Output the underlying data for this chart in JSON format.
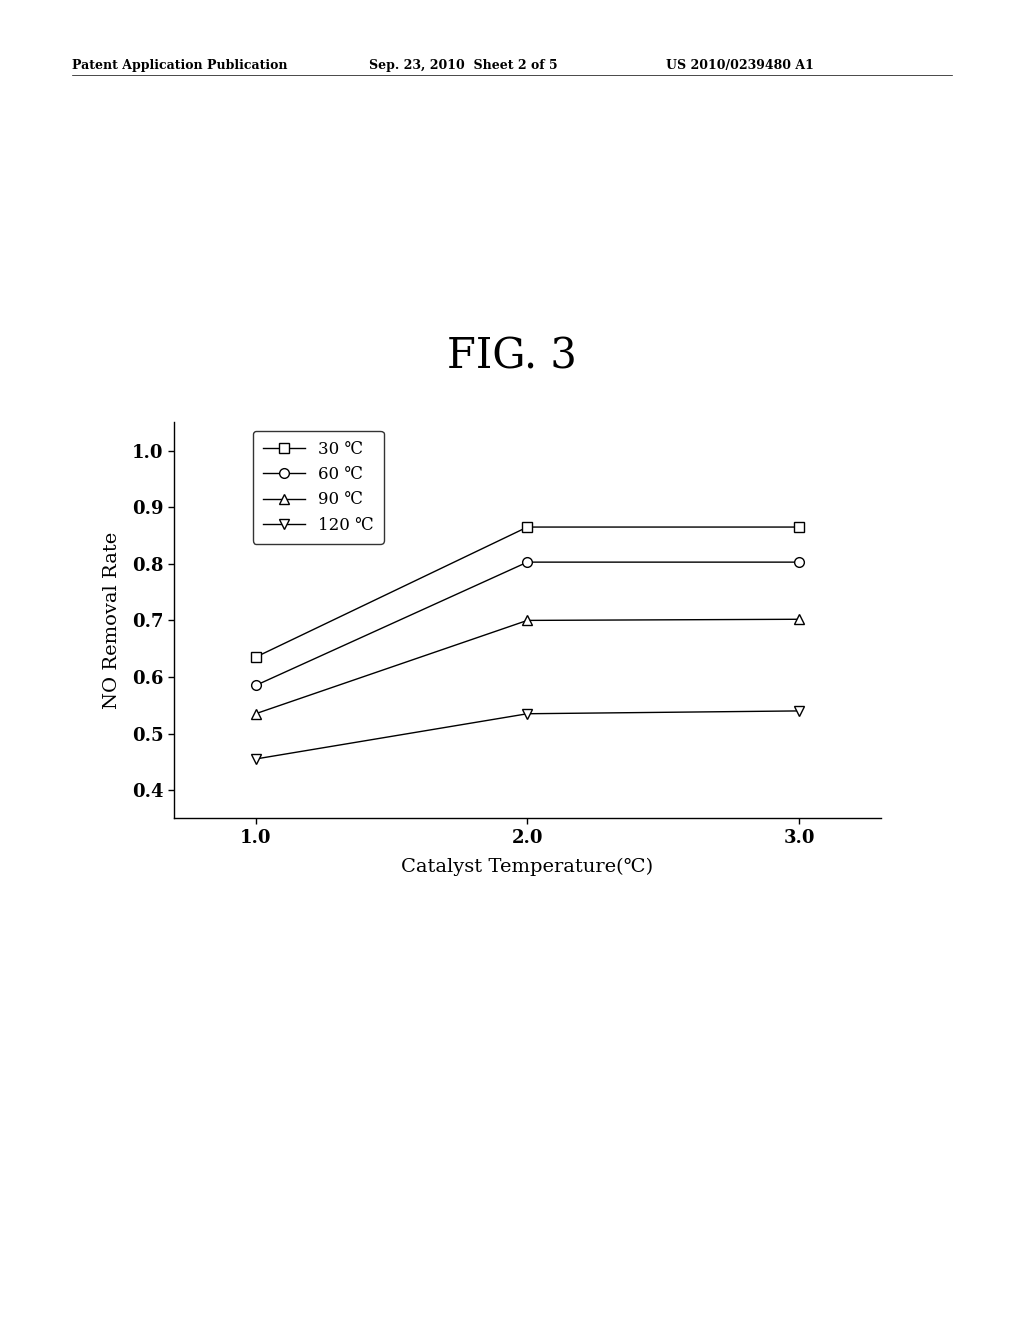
{
  "title": "FIG. 3",
  "xlabel": "Catalyst Temperature(℃)",
  "ylabel": "NO Removal Rate",
  "header_left": "Patent Application Publication",
  "header_center": "Sep. 23, 2010  Sheet 2 of 5",
  "header_right": "US 2010/0239480 A1",
  "x_values": [
    1.0,
    2.0,
    3.0
  ],
  "series": [
    {
      "label": "30 ℃",
      "y_values": [
        0.635,
        0.865,
        0.865
      ],
      "marker": "s",
      "marker_fill": "white",
      "marker_size": 7
    },
    {
      "label": "60 ℃",
      "y_values": [
        0.585,
        0.803,
        0.803
      ],
      "marker": "o",
      "marker_fill": "white",
      "marker_size": 7
    },
    {
      "label": "90 ℃",
      "y_values": [
        0.535,
        0.7,
        0.702
      ],
      "marker": "^",
      "marker_fill": "white",
      "marker_size": 7
    },
    {
      "label": "120 ℃",
      "y_values": [
        0.455,
        0.535,
        0.54
      ],
      "marker": "v",
      "marker_fill": "white",
      "marker_size": 7
    }
  ],
  "xlim": [
    0.7,
    3.3
  ],
  "ylim": [
    0.35,
    1.05
  ],
  "yticks": [
    0.4,
    0.5,
    0.6,
    0.7,
    0.8,
    0.9,
    1.0
  ],
  "xticks": [
    1.0,
    2.0,
    3.0
  ],
  "line_color": "black",
  "background_color": "white",
  "fig_width": 10.24,
  "fig_height": 13.2
}
